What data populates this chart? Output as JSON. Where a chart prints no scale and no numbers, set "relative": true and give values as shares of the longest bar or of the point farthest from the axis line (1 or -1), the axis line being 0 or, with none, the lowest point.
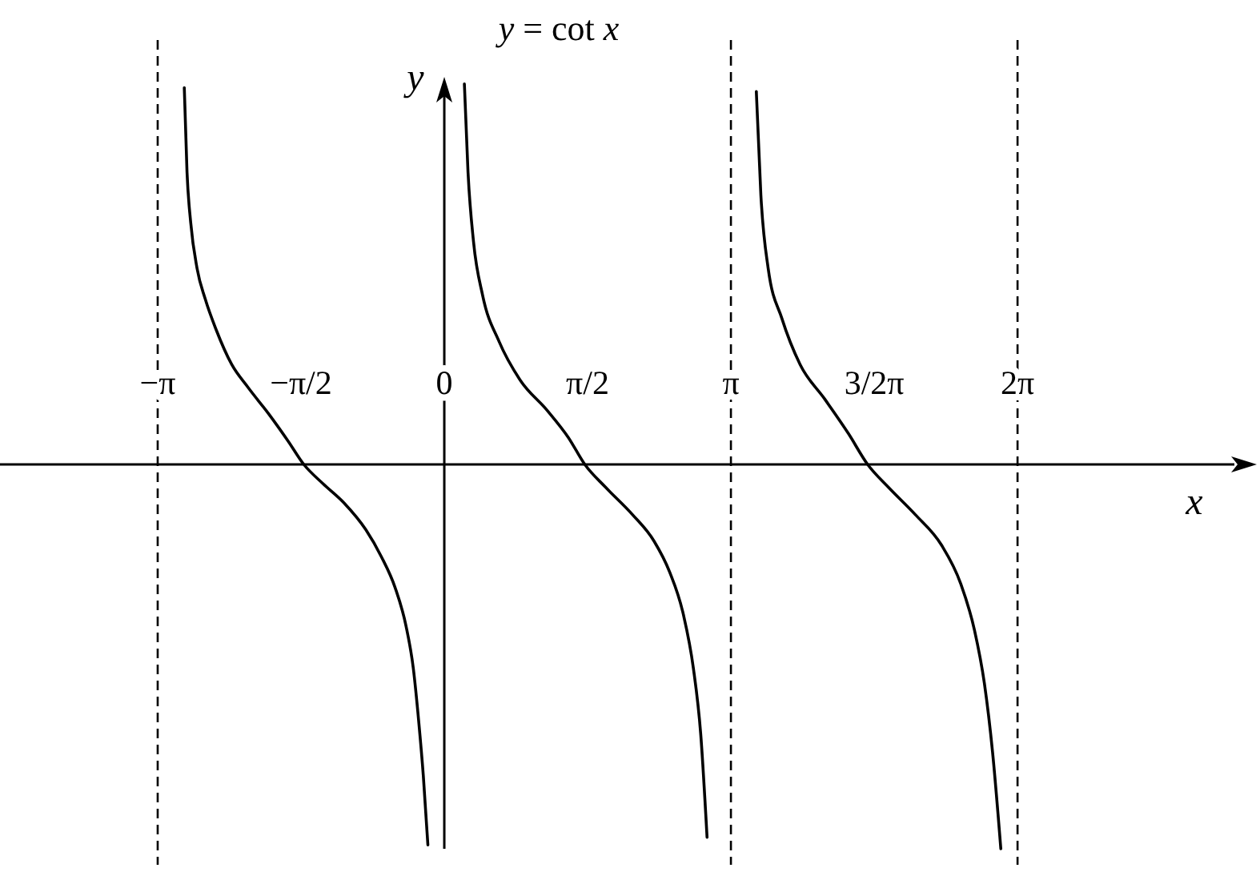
{
  "chart_data": {
    "type": "line",
    "title": "y = cot x",
    "xlabel": "x",
    "ylabel": "y",
    "relative": true,
    "xlim": [
      -4.87,
      8.66
    ],
    "xticks": [
      {
        "value": -3.1416,
        "label": "−π"
      },
      {
        "value": -1.5708,
        "label": "−π/2"
      },
      0,
      {
        "value": 1.5708,
        "label": "π/2"
      },
      {
        "value": 3.1416,
        "label": "π"
      },
      {
        "value": 4.7124,
        "label": "3/2π"
      },
      {
        "value": 6.2832,
        "label": "2π"
      }
    ],
    "ref_lines": [
      {
        "axis": "x",
        "value": -3.1416,
        "line_style": "dashed",
        "color": "#000000"
      },
      {
        "axis": "x",
        "value": 3.1416,
        "line_style": "dashed",
        "color": "#000000"
      },
      {
        "axis": "x",
        "value": 6.2832,
        "line_style": "dashed",
        "color": "#000000"
      }
    ],
    "series": [
      {
        "color": "#000000",
        "x": [
          -2.85,
          -2.82,
          -2.78,
          -2.71,
          -2.62,
          -2.5,
          -2.33,
          -2.15,
          -1.92,
          -1.71,
          -1.54,
          -1.33,
          -1.1,
          -0.86,
          -0.69,
          -0.54,
          -0.42,
          -0.34,
          -0.28,
          -0.23,
          -0.18,
          0,
          0.22,
          0.26,
          0.32,
          0.42,
          0.6,
          0.83,
          1.13,
          1.36,
          1.54,
          1.77,
          2.06,
          2.3,
          2.47,
          2.62,
          2.73,
          2.81,
          2.88,
          3.1416,
          3.42,
          3.47,
          3.55,
          3.7,
          3.9,
          4.17,
          4.43,
          4.64,
          4.87,
          5.16,
          5.45,
          5.66,
          5.81,
          5.92,
          6.01,
          6.1
        ],
        "values": [
          0.98,
          0.76,
          0.63,
          0.51,
          0.43,
          0.35,
          0.26,
          0.2,
          0.13,
          0.06,
          0,
          -0.05,
          -0.1,
          -0.17,
          -0.24,
          -0.32,
          -0.42,
          -0.53,
          -0.67,
          -0.81,
          -0.99,
          null,
          0.99,
          0.76,
          0.58,
          0.44,
          0.32,
          0.22,
          0.14,
          0.07,
          0,
          -0.06,
          -0.13,
          -0.2,
          -0.28,
          -0.39,
          -0.53,
          -0.7,
          -0.97,
          null,
          0.97,
          0.7,
          0.51,
          0.38,
          0.26,
          0.17,
          0.08,
          0,
          -0.06,
          -0.13,
          -0.21,
          -0.31,
          -0.43,
          -0.57,
          -0.75,
          -1
        ]
      }
    ]
  }
}
